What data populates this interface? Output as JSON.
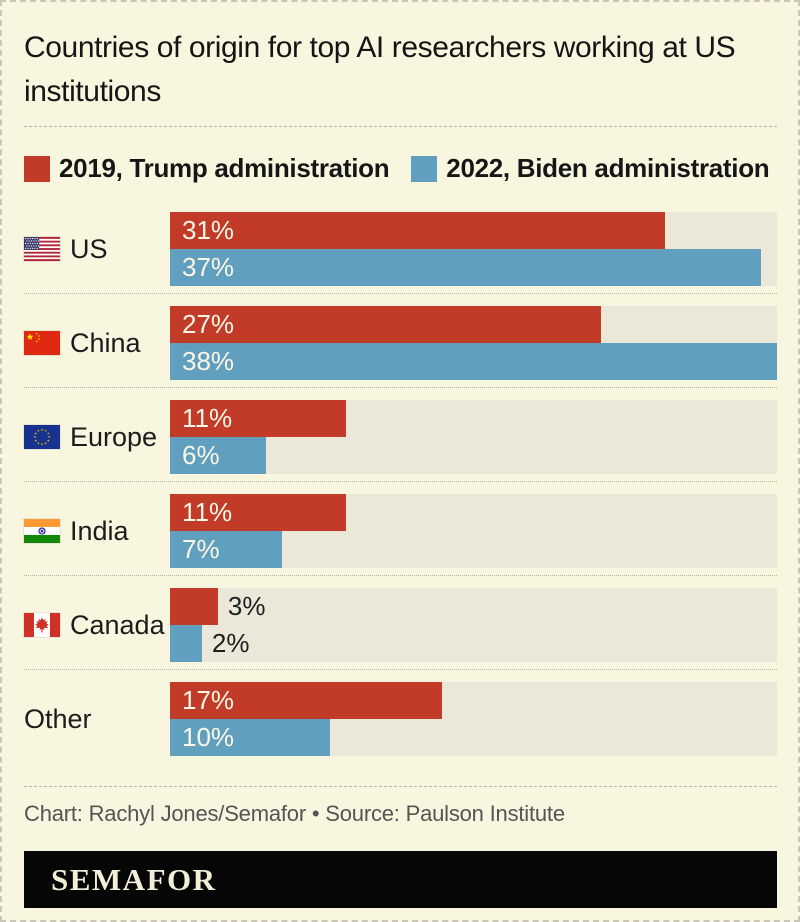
{
  "page": {
    "title": "Countries of origin for top AI researchers working at US institutions",
    "credit": "Chart: Rachyl Jones/Semafor • Source: Paulson Institute",
    "logo_text": "SEMAFOR"
  },
  "colors": {
    "background": "#f9f6e0",
    "bar_track": "#ece8d9",
    "red_2019": "#c23a28",
    "blue_2022": "#609fbe",
    "logo_bar_bg": "#060606",
    "logo_text": "#f3eed8",
    "credit_text": "#545454"
  },
  "legend": [
    {
      "label": "2019, Trump administration",
      "color": "#c23a28"
    },
    {
      "label": "2022, Biden administration",
      "color": "#609fbe"
    }
  ],
  "chart_data": {
    "type": "bar",
    "orientation": "horizontal",
    "value_unit": "%",
    "axis_max": 38,
    "grid": false,
    "legend_position": "top",
    "categories": [
      "US",
      "China",
      "Europe",
      "India",
      "Canada",
      "Other"
    ],
    "series": [
      {
        "name": "2019, Trump administration",
        "color": "#c23a28",
        "values": [
          31,
          27,
          11,
          11,
          3,
          17
        ]
      },
      {
        "name": "2022, Biden administration",
        "color": "#609fbe",
        "values": [
          37,
          38,
          6,
          7,
          2,
          10
        ]
      }
    ],
    "rows": [
      {
        "label": "US",
        "flag": "us-flag",
        "values": [
          31,
          37
        ],
        "value_labels": [
          "31%",
          "37%"
        ]
      },
      {
        "label": "China",
        "flag": "china-flag",
        "values": [
          27,
          38
        ],
        "value_labels": [
          "27%",
          "38%"
        ]
      },
      {
        "label": "Europe",
        "flag": "eu-flag",
        "values": [
          11,
          6
        ],
        "value_labels": [
          "11%",
          "6%"
        ]
      },
      {
        "label": "India",
        "flag": "india-flag",
        "values": [
          11,
          7
        ],
        "value_labels": [
          "11%",
          "7%"
        ]
      },
      {
        "label": "Canada",
        "flag": "canada-flag",
        "values": [
          3,
          2
        ],
        "value_labels": [
          "3%",
          "2%"
        ]
      },
      {
        "label": "Other",
        "flag": null,
        "values": [
          17,
          10
        ],
        "value_labels": [
          "17%",
          "10%"
        ]
      }
    ]
  }
}
